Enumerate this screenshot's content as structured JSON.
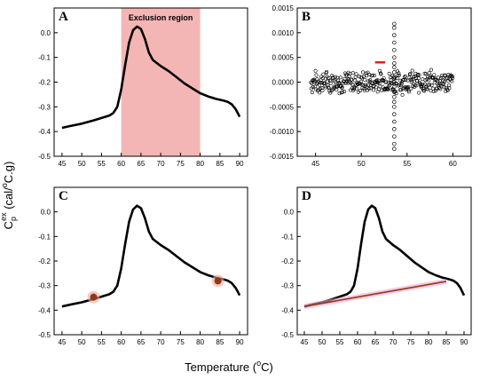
{
  "figure": {
    "xlabel_main": "Temperature (",
    "xlabel_unit": "o",
    "xlabel_end": "C)",
    "ylabel_c": "C",
    "ylabel_sub": "p",
    "ylabel_sup": "ex",
    "ylabel_mid": " (cal/",
    "ylabel_sup2": "o",
    "ylabel_end": "C.g)"
  },
  "chart_data": [
    {
      "panel": "A",
      "type": "line",
      "annotation": "Exclusion region",
      "exclusion": [
        60,
        80
      ],
      "xlim": [
        43,
        92
      ],
      "ylim": [
        -0.5,
        0.1
      ],
      "xticks": [
        "45",
        "50",
        "55",
        "60",
        "65",
        "70",
        "75",
        "80",
        "85",
        "90"
      ],
      "yticks": [
        "-0.5",
        "-0.4",
        "-0.3",
        "-0.2",
        "-0.1",
        "0.0"
      ],
      "exclusion_color": "#f4b6b4",
      "curve_color": "#000000",
      "curve_x": [
        45,
        47,
        50,
        53,
        55,
        57,
        58,
        59,
        60,
        61,
        62,
        63,
        64,
        65,
        66,
        67,
        68,
        70,
        72,
        74,
        76,
        78,
        80,
        82,
        84,
        86,
        87,
        88,
        89,
        90
      ],
      "curve_y": [
        -0.385,
        -0.378,
        -0.368,
        -0.355,
        -0.345,
        -0.335,
        -0.325,
        -0.3,
        -0.23,
        -0.13,
        -0.04,
        0.01,
        0.025,
        0.015,
        -0.025,
        -0.08,
        -0.11,
        -0.135,
        -0.155,
        -0.18,
        -0.205,
        -0.225,
        -0.245,
        -0.258,
        -0.268,
        -0.275,
        -0.28,
        -0.29,
        -0.31,
        -0.34
      ]
    },
    {
      "panel": "B",
      "type": "scatter",
      "xlim": [
        43,
        62
      ],
      "ylim": [
        -0.0015,
        0.0015
      ],
      "xticks": [
        "45",
        "50",
        "55",
        "60"
      ],
      "yticks": [
        "-0.0015",
        "-0.0010",
        "-0.0005",
        "0.0000",
        "0.0005",
        "0.0010",
        "0.0015"
      ],
      "marker_color": "#000000",
      "red_segment": {
        "x": [
          51.5,
          52.6
        ],
        "y": [
          0.0004,
          0.0004
        ],
        "color": "#e02020"
      },
      "spike_x": 53.6,
      "spike_y": [
        0.00118,
        0.0011,
        0.00095,
        0.0008,
        0.00065,
        0.0005,
        0.00038,
        0.0003,
        0.0002,
        0.0001,
        0.0,
        -0.0001,
        -0.0002,
        -0.0003,
        -0.0004,
        -0.0005,
        -0.00065,
        -0.0008,
        -0.00095,
        -0.0011,
        -0.00125,
        -0.00135
      ],
      "noise_range": [
        44.5,
        60.0
      ],
      "noise_amplitude": 0.00022
    },
    {
      "panel": "C",
      "type": "line",
      "xlim": [
        43,
        92
      ],
      "ylim": [
        -0.5,
        0.1
      ],
      "xticks": [
        "45",
        "50",
        "55",
        "60",
        "65",
        "70",
        "75",
        "80",
        "85",
        "90"
      ],
      "yticks": [
        "-0.5",
        "-0.4",
        "-0.3",
        "-0.2",
        "-0.1",
        "0.0"
      ],
      "markers": [
        {
          "x": 53,
          "y": -0.347
        },
        {
          "x": 84.5,
          "y": -0.281
        }
      ],
      "marker_color": "#8b3a1a",
      "marker_glow": "#f2a8a0"
    },
    {
      "panel": "D",
      "type": "line",
      "xlim": [
        43,
        92
      ],
      "ylim": [
        -0.5,
        0.1
      ],
      "xticks": [
        "45",
        "50",
        "55",
        "60",
        "65",
        "70",
        "75",
        "80",
        "85",
        "90"
      ],
      "yticks": [
        "-0.5",
        "-0.4",
        "-0.3",
        "-0.2",
        "-0.1",
        "0.0"
      ],
      "baseline": {
        "x": [
          45,
          85
        ],
        "y": [
          -0.385,
          -0.283
        ]
      },
      "baseline_color": "#8b3a1a",
      "baseline_glow": "#f2a8d0"
    }
  ]
}
